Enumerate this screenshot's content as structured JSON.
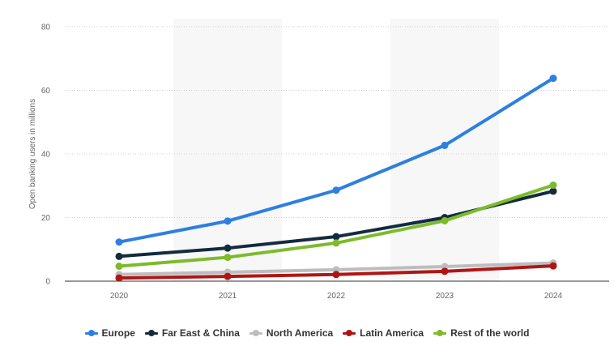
{
  "chart_data": {
    "type": "line",
    "ylabel": "Open banking users in millions",
    "xlabel": "",
    "x": [
      "2020",
      "2021",
      "2022",
      "2023",
      "2024"
    ],
    "ylim": [
      0,
      80
    ],
    "yticks": [
      0,
      20,
      40,
      60,
      80
    ],
    "grid": true,
    "legend_position": "bottom",
    "series": [
      {
        "name": "Europe",
        "color": "#2d7fe0",
        "values": [
          12.3,
          18.9,
          28.6,
          42.7,
          63.8
        ]
      },
      {
        "name": "Far East & China",
        "color": "#132b3f",
        "values": [
          7.8,
          10.4,
          14.0,
          20.0,
          28.3
        ]
      },
      {
        "name": "North America",
        "color": "#bdbdbd",
        "values": [
          2.1,
          2.8,
          3.6,
          4.6,
          5.7
        ]
      },
      {
        "name": "Latin America",
        "color": "#b01515",
        "values": [
          1.0,
          1.5,
          2.1,
          3.1,
          4.8
        ]
      },
      {
        "name": "Rest of the world",
        "color": "#7dbb2b",
        "values": [
          4.7,
          7.5,
          12.0,
          19.0,
          30.2
        ]
      }
    ]
  }
}
